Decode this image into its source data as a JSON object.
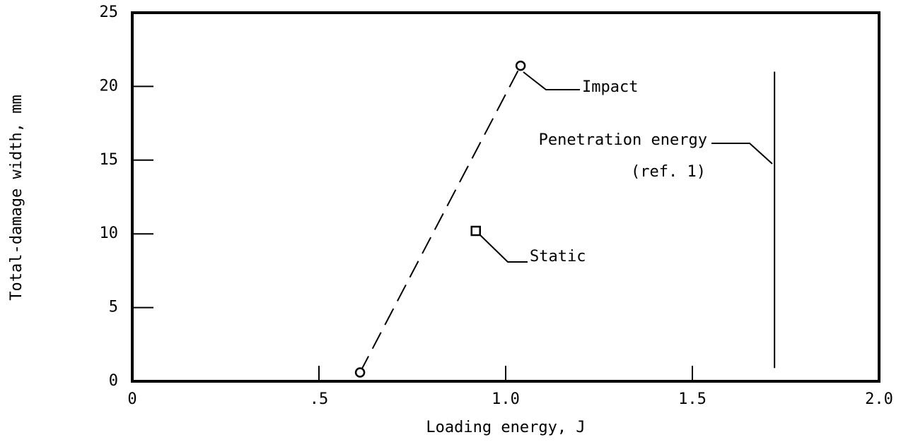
{
  "chart_data": {
    "type": "line",
    "x_label": "Loading energy, J",
    "y_label": "Total-damage width, mm",
    "xlim": [
      0,
      2.0
    ],
    "ylim": [
      0,
      25
    ],
    "xticks": [
      0,
      {
        "value": 0.5,
        "label": ".5"
      },
      {
        "value": 1.0,
        "label": "1.0"
      },
      1.5,
      {
        "value": 2.0,
        "label": "2.0"
      }
    ],
    "yticks": [
      0,
      5,
      10,
      15,
      20,
      25
    ],
    "grid": false,
    "series": [
      {
        "name": "Impact",
        "color": "#000000",
        "marker": "circle",
        "linestyle": "dashed",
        "x": [
          0.61,
          1.04
        ],
        "values": [
          0.6,
          21.4
        ]
      },
      {
        "name": "Static",
        "color": "#000000",
        "marker": "square",
        "linestyle": "none",
        "x": [
          0.92
        ],
        "values": [
          10.2
        ]
      }
    ],
    "reference_line": {
      "x": 1.72,
      "y_from": 0.9,
      "y_to": 21,
      "label": "Penetration energy",
      "note": "(ref. 1)"
    }
  }
}
